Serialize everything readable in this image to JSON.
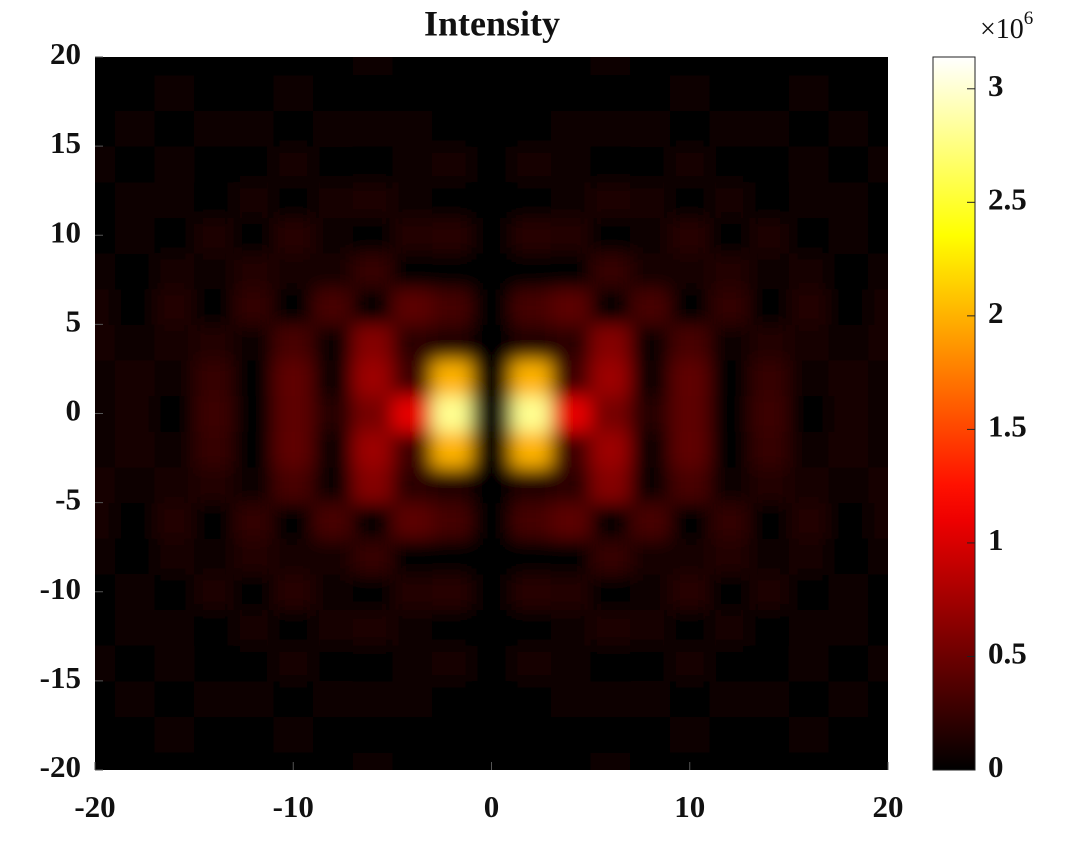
{
  "chart_data": {
    "type": "heatmap",
    "title": "Intensity",
    "colormap": "hot",
    "x": [
      -20,
      -18,
      -16,
      -14,
      -12,
      -10,
      -8,
      -6,
      -4,
      -2,
      0,
      2,
      4,
      6,
      8,
      10,
      12,
      14,
      16,
      18,
      20
    ],
    "y": [
      -20,
      -18,
      -16,
      -14,
      -12,
      -10,
      -8,
      -6,
      -4,
      -2,
      0,
      2,
      4,
      6,
      8,
      10,
      12,
      14,
      16,
      18,
      20
    ],
    "z": [
      [
        0.02,
        0.01,
        0,
        0.03,
        0.01,
        0,
        0.03,
        0.04,
        0.03,
        0.02,
        0,
        0.02,
        0.03,
        0.04,
        0.03,
        0,
        0.01,
        0.03,
        0,
        0.01,
        0.02
      ],
      [
        0.02,
        0.01,
        0.04,
        0,
        0.03,
        0.05,
        0.02,
        0,
        0.02,
        0.03,
        0,
        0.03,
        0.02,
        0,
        0.02,
        0.05,
        0.03,
        0,
        0.04,
        0.01,
        0.02
      ],
      [
        0.01,
        0.04,
        0,
        0.05,
        0.04,
        0,
        0.06,
        0.08,
        0.04,
        0.02,
        0,
        0.02,
        0.04,
        0.08,
        0.06,
        0,
        0.04,
        0.05,
        0,
        0.04,
        0.01
      ],
      [
        0.05,
        0,
        0.06,
        0.03,
        0.03,
        0.1,
        0.03,
        0.01,
        0.06,
        0.09,
        0,
        0.09,
        0.06,
        0.01,
        0.03,
        0.1,
        0.03,
        0.03,
        0.06,
        0,
        0.05
      ],
      [
        0.02,
        0.04,
        0.05,
        0.03,
        0.11,
        0,
        0.11,
        0.12,
        0.04,
        0,
        0,
        0,
        0.04,
        0.12,
        0.11,
        0,
        0.11,
        0.03,
        0.05,
        0.04,
        0.02
      ],
      [
        0,
        0.08,
        0,
        0.14,
        0,
        0.17,
        0.07,
        0.02,
        0.16,
        0.17,
        0,
        0.17,
        0.16,
        0.02,
        0.07,
        0.17,
        0,
        0.14,
        0,
        0.08,
        0
      ],
      [
        0.05,
        0.03,
        0.11,
        0.04,
        0.15,
        0.09,
        0.1,
        0.25,
        0.03,
        0.02,
        0,
        0.02,
        0.03,
        0.25,
        0.1,
        0.09,
        0.15,
        0.04,
        0.11,
        0.03,
        0.05
      ],
      [
        0.09,
        0,
        0.16,
        0.01,
        0.22,
        0.03,
        0.33,
        0,
        0.42,
        0.32,
        0,
        0.32,
        0.42,
        0,
        0.33,
        0.03,
        0.22,
        0.01,
        0.16,
        0,
        0.09
      ],
      [
        0.09,
        0.04,
        0.1,
        0.15,
        0.08,
        0.33,
        0.06,
        0.61,
        0.19,
        0.16,
        0,
        0.16,
        0.19,
        0.61,
        0.06,
        0.33,
        0.08,
        0.15,
        0.1,
        0.04,
        0.09
      ],
      [
        0.07,
        0.09,
        0.05,
        0.24,
        0.01,
        0.44,
        0.04,
        0.72,
        0.29,
        2.0,
        0,
        2.0,
        0.29,
        0.72,
        0.04,
        0.44,
        0.01,
        0.24,
        0.05,
        0.09,
        0.07
      ],
      [
        0.06,
        0.11,
        0.03,
        0.27,
        0,
        0.43,
        0.17,
        0.55,
        1.07,
        2.8,
        0,
        2.8,
        1.07,
        0.55,
        0.17,
        0.43,
        0,
        0.27,
        0.03,
        0.11,
        0.06
      ],
      [
        0.07,
        0.09,
        0.05,
        0.24,
        0.01,
        0.44,
        0.04,
        0.72,
        0.29,
        2.0,
        0,
        2.0,
        0.29,
        0.72,
        0.04,
        0.44,
        0.01,
        0.24,
        0.05,
        0.09,
        0.07
      ],
      [
        0.09,
        0.04,
        0.1,
        0.15,
        0.08,
        0.33,
        0.06,
        0.61,
        0.19,
        0.16,
        0,
        0.16,
        0.19,
        0.61,
        0.06,
        0.33,
        0.08,
        0.15,
        0.1,
        0.04,
        0.09
      ],
      [
        0.09,
        0,
        0.16,
        0.01,
        0.22,
        0.03,
        0.33,
        0,
        0.42,
        0.32,
        0,
        0.32,
        0.42,
        0,
        0.33,
        0.03,
        0.22,
        0.01,
        0.16,
        0,
        0.09
      ],
      [
        0.05,
        0.03,
        0.11,
        0.04,
        0.15,
        0.09,
        0.1,
        0.25,
        0.03,
        0.02,
        0,
        0.02,
        0.03,
        0.25,
        0.1,
        0.09,
        0.15,
        0.04,
        0.11,
        0.03,
        0.05
      ],
      [
        0,
        0.08,
        0,
        0.14,
        0,
        0.17,
        0.07,
        0.02,
        0.16,
        0.17,
        0,
        0.17,
        0.16,
        0.02,
        0.07,
        0.17,
        0,
        0.14,
        0,
        0.08,
        0
      ],
      [
        0.02,
        0.04,
        0.05,
        0.03,
        0.11,
        0,
        0.11,
        0.12,
        0.04,
        0,
        0,
        0,
        0.04,
        0.12,
        0.11,
        0,
        0.11,
        0.03,
        0.05,
        0.04,
        0.02
      ],
      [
        0.05,
        0,
        0.06,
        0.03,
        0.03,
        0.1,
        0.03,
        0.01,
        0.06,
        0.09,
        0,
        0.09,
        0.06,
        0.01,
        0.03,
        0.1,
        0.03,
        0.03,
        0.06,
        0,
        0.05
      ],
      [
        0.01,
        0.04,
        0,
        0.05,
        0.04,
        0,
        0.06,
        0.08,
        0.04,
        0.02,
        0,
        0.02,
        0.04,
        0.08,
        0.06,
        0,
        0.04,
        0.05,
        0,
        0.04,
        0.01
      ],
      [
        0.02,
        0.01,
        0.04,
        0,
        0.03,
        0.05,
        0.02,
        0,
        0.02,
        0.03,
        0,
        0.03,
        0.02,
        0,
        0.02,
        0.05,
        0.03,
        0,
        0.04,
        0.01,
        0.02
      ],
      [
        0.02,
        0.01,
        0,
        0.03,
        0.01,
        0,
        0.03,
        0.04,
        0.03,
        0.02,
        0,
        0.02,
        0.03,
        0.04,
        0.03,
        0,
        0.01,
        0.03,
        0,
        0.01,
        0.02
      ]
    ],
    "xlim": [
      -20,
      20
    ],
    "xticks": [
      -20,
      -10,
      0,
      10,
      20
    ],
    "ylim": [
      -20,
      20
    ],
    "yticks": [
      -20,
      -15,
      -10,
      -5,
      0,
      5,
      10,
      15,
      20
    ],
    "zlim": [
      0,
      3.14
    ],
    "colorbar_ticks": [
      0,
      0.5,
      1,
      1.5,
      2,
      2.5,
      3
    ],
    "colorbar_multiplier": {
      "text": "×10",
      "power": 6
    }
  }
}
